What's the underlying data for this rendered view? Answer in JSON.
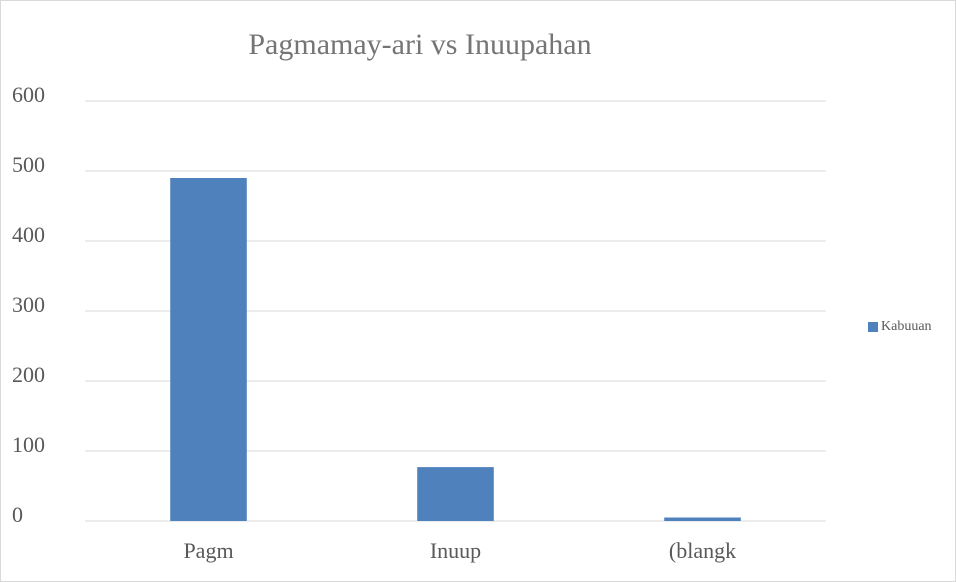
{
  "chart_data": {
    "type": "bar",
    "title": "Pagmamay-ari vs Inuupahan",
    "categories": [
      "Pagm",
      "Inuup",
      "(blangk"
    ],
    "series": [
      {
        "name": "Kabuuan",
        "color": "#4f81bd",
        "values": [
          490,
          77,
          5
        ]
      }
    ],
    "ylim": [
      0,
      600
    ],
    "yticks": [
      0,
      100,
      200,
      300,
      400,
      500,
      600
    ],
    "grid": true,
    "legend": "right"
  }
}
